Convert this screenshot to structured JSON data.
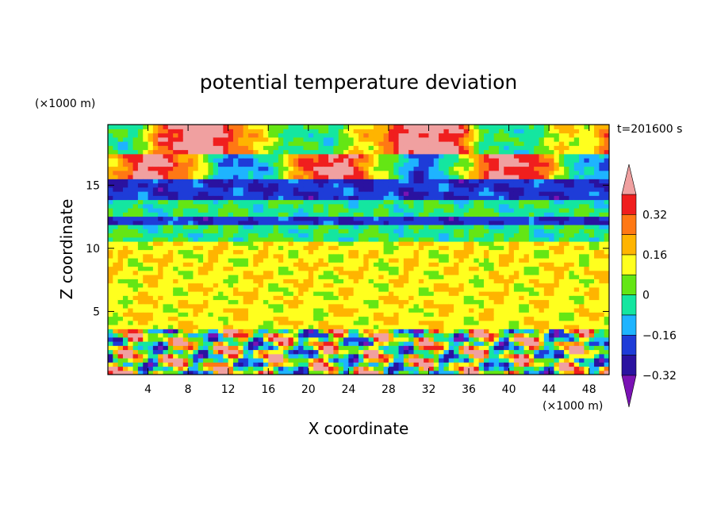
{
  "chart_data": {
    "type": "heatmap",
    "title": "potential temperature deviation",
    "xlabel": "X coordinate",
    "ylabel": "Z coordinate",
    "x_unit": "(×1000 m)",
    "y_unit": "(×1000 m)",
    "time_label": "t=201600 s",
    "xlim": [
      0,
      50
    ],
    "ylim": [
      0,
      19.8
    ],
    "x_ticks": [
      "4",
      "8",
      "12",
      "16",
      "20",
      "24",
      "28",
      "32",
      "36",
      "40",
      "44",
      "48"
    ],
    "y_ticks": [
      "5",
      "10",
      "15"
    ],
    "x_tick_values": [
      4,
      8,
      12,
      16,
      20,
      24,
      28,
      32,
      36,
      40,
      44,
      48
    ],
    "y_tick_values": [
      5,
      10,
      15
    ],
    "colorbar": {
      "levels": [
        -0.4,
        -0.32,
        -0.24,
        -0.16,
        -0.08,
        0,
        0.08,
        0.16,
        0.24,
        0.32,
        0.4
      ],
      "tick_labels": [
        "0.32",
        "0.16",
        "0",
        "−0.16",
        "−0.32"
      ],
      "tick_values": [
        0.32,
        0.16,
        0,
        -0.16,
        -0.32
      ],
      "colors": [
        "#7a12b4",
        "#2a12a0",
        "#1e3cd8",
        "#1eb4ff",
        "#14e6a0",
        "#64e614",
        "#ffff1e",
        "#ffb400",
        "#ff7814",
        "#f01e1e",
        "#f0a0a0"
      ],
      "extend": "both"
    },
    "layers": [
      {
        "z_range": [
          0,
          3.5
        ],
        "mean": 0.0,
        "description_level": "turbulent"
      },
      {
        "z_range": [
          3.5,
          10.5
        ],
        "mean": 0.05
      },
      {
        "z_range": [
          10.5,
          12.0
        ],
        "mean": -0.1
      },
      {
        "z_range": [
          12.0,
          12.6
        ],
        "mean": -0.3
      },
      {
        "z_range": [
          12.6,
          14.0
        ],
        "mean": -0.1
      },
      {
        "z_range": [
          14.0,
          15.4
        ],
        "mean": -0.3
      },
      {
        "z_range": [
          15.4,
          17.5
        ],
        "mean": 0.3
      },
      {
        "z_range": [
          17.5,
          19.8
        ],
        "mean": 0.05
      }
    ]
  }
}
